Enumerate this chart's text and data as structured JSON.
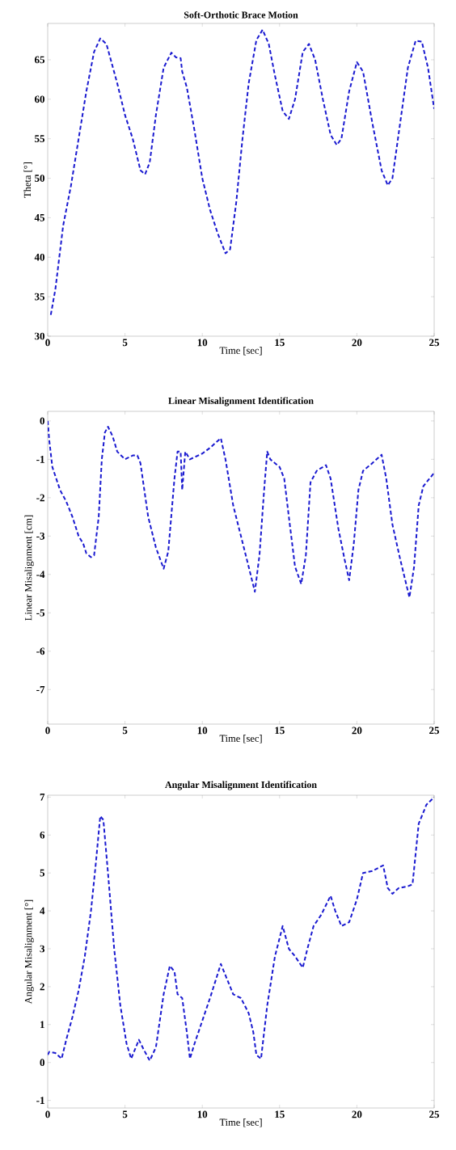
{
  "chart_data": [
    {
      "type": "line",
      "title": "Soft-Orthotic Brace Motion",
      "xlabel": "Time [sec]",
      "ylabel": "Theta [°]",
      "color": "#1a1ad0",
      "line_style": "dashed",
      "xlim": [
        0,
        25
      ],
      "ylim": [
        30,
        69.6
      ],
      "xticks": [
        0,
        5,
        10,
        15,
        20,
        25
      ],
      "yticks": [
        30,
        35,
        40,
        45,
        50,
        55,
        60,
        65
      ],
      "x": [
        0.2,
        0.5,
        1,
        1.5,
        2,
        2.5,
        3,
        3.4,
        3.8,
        4.5,
        5,
        5.5,
        6,
        6.3,
        6.6,
        7,
        7.5,
        8,
        8.3,
        8.6,
        8.7,
        9,
        9.5,
        10,
        10.5,
        11,
        11.5,
        11.8,
        12.2,
        12.6,
        13,
        13.5,
        13.9,
        14.3,
        14.7,
        15.2,
        15.6,
        16,
        16.5,
        16.9,
        17.3,
        17.8,
        18.3,
        18.7,
        19,
        19.5,
        20,
        20.4,
        21,
        21.6,
        22,
        22.3,
        22.8,
        23.3,
        23.8,
        24.2,
        24.6,
        25
      ],
      "values": [
        32.7,
        36,
        44,
        49,
        55,
        61,
        66,
        67.7,
        67,
        62,
        58,
        55,
        51,
        50.5,
        52,
        58,
        64,
        65.9,
        65.3,
        65.2,
        63.5,
        61.5,
        56,
        50,
        46,
        43,
        40.5,
        41,
        47,
        55,
        62,
        67.5,
        68.8,
        67,
        63,
        58.5,
        57.5,
        60,
        66,
        67,
        65,
        60,
        55.5,
        54.2,
        55,
        61,
        64.7,
        63.5,
        57,
        51,
        49.1,
        50,
        57,
        64,
        67.4,
        67.3,
        64,
        58.8
      ]
    },
    {
      "type": "line",
      "title": "Linear Misalignment Identification",
      "xlabel": "Time [sec]",
      "ylabel": "Linear Misalignment [cm]",
      "color": "#1a1ad0",
      "line_style": "dashed",
      "xlim": [
        0,
        25
      ],
      "ylim": [
        -7.9,
        0.25
      ],
      "xticks": [
        0,
        5,
        10,
        15,
        20,
        25
      ],
      "yticks": [
        -7,
        -6,
        -5,
        -4,
        -3,
        -2,
        -1,
        0
      ],
      "x": [
        0,
        0.1,
        0.3,
        0.8,
        1.2,
        1.6,
        2,
        2.3,
        2.5,
        2.8,
        3.0,
        3.3,
        3.5,
        3.7,
        3.9,
        4.2,
        4.5,
        5,
        5.5,
        5.8,
        6,
        6.5,
        7,
        7.5,
        7.8,
        8.2,
        8.4,
        8.6,
        8.7,
        8.9,
        9.2,
        10,
        10.5,
        11.2,
        11.5,
        12,
        12.5,
        13,
        13.4,
        13.7,
        14,
        14.2,
        14.4,
        15,
        15.3,
        15.6,
        16,
        16.4,
        16.7,
        17,
        17.4,
        18,
        18.3,
        18.8,
        19.2,
        19.5,
        19.8,
        20.1,
        20.4,
        21,
        21.6,
        21.9,
        22.3,
        22.8,
        23.4,
        23.7,
        24,
        24.3,
        24.7,
        25
      ],
      "values": [
        0,
        -0.5,
        -1.2,
        -1.8,
        -2.1,
        -2.5,
        -3.0,
        -3.2,
        -3.45,
        -3.55,
        -3.5,
        -2.5,
        -1.0,
        -0.3,
        -0.15,
        -0.4,
        -0.8,
        -1.0,
        -0.9,
        -0.9,
        -1.1,
        -2.5,
        -3.3,
        -3.85,
        -3.4,
        -1.5,
        -0.8,
        -0.8,
        -1.8,
        -0.8,
        -1.0,
        -0.85,
        -0.7,
        -0.45,
        -1.0,
        -2.2,
        -3.0,
        -3.8,
        -4.45,
        -3.5,
        -1.8,
        -0.8,
        -1.0,
        -1.2,
        -1.5,
        -2.5,
        -3.8,
        -4.25,
        -3.5,
        -1.6,
        -1.3,
        -1.15,
        -1.5,
        -2.8,
        -3.6,
        -4.15,
        -3.2,
        -1.8,
        -1.3,
        -1.1,
        -0.88,
        -1.5,
        -2.7,
        -3.6,
        -4.6,
        -3.8,
        -2.2,
        -1.7,
        -1.5,
        -1.35
      ]
    },
    {
      "type": "line",
      "title": "Angular Misalignment Identification",
      "xlabel": "Time [sec]",
      "ylabel": "Angular Misalignment [°]",
      "color": "#1a1ad0",
      "line_style": "dashed",
      "xlim": [
        0,
        25
      ],
      "ylim": [
        -1.2,
        7.05
      ],
      "xticks": [
        0,
        5,
        10,
        15,
        20,
        25
      ],
      "yticks": [
        -1,
        0,
        1,
        2,
        3,
        4,
        5,
        6,
        7
      ],
      "x": [
        0,
        0.1,
        0.5,
        0.9,
        1.2,
        1.6,
        2,
        2.4,
        2.8,
        3.1,
        3.4,
        3.6,
        3.9,
        4.3,
        4.7,
        5.1,
        5.4,
        5.6,
        5.9,
        6.2,
        6.6,
        7,
        7.5,
        7.9,
        8.2,
        8.4,
        8.7,
        9,
        9.2,
        9.5,
        10,
        10.5,
        11.2,
        11.6,
        12,
        12.5,
        13,
        13.3,
        13.5,
        13.8,
        14.2,
        14.7,
        15.2,
        15.6,
        16,
        16.5,
        16.8,
        17.2,
        17.7,
        18.3,
        18.6,
        19,
        19.5,
        20,
        20.4,
        21,
        21.7,
        22,
        22.3,
        22.7,
        23.3,
        23.6,
        24,
        24.5,
        25
      ],
      "values": [
        0.2,
        0.28,
        0.25,
        0.1,
        0.6,
        1.2,
        1.9,
        2.8,
        4.0,
        5.2,
        6.5,
        6.4,
        5.0,
        3.0,
        1.5,
        0.5,
        0.1,
        0.3,
        0.6,
        0.35,
        0.05,
        0.4,
        1.8,
        2.55,
        2.4,
        1.8,
        1.7,
        0.8,
        0.1,
        0.5,
        1.1,
        1.7,
        2.6,
        2.2,
        1.8,
        1.7,
        1.3,
        0.8,
        0.2,
        0.1,
        1.5,
        2.8,
        3.6,
        3.0,
        2.8,
        2.5,
        3.0,
        3.6,
        3.9,
        4.4,
        4.0,
        3.6,
        3.7,
        4.3,
        5.0,
        5.05,
        5.2,
        4.6,
        4.45,
        4.6,
        4.65,
        4.7,
        6.3,
        6.8,
        7.0
      ]
    }
  ]
}
